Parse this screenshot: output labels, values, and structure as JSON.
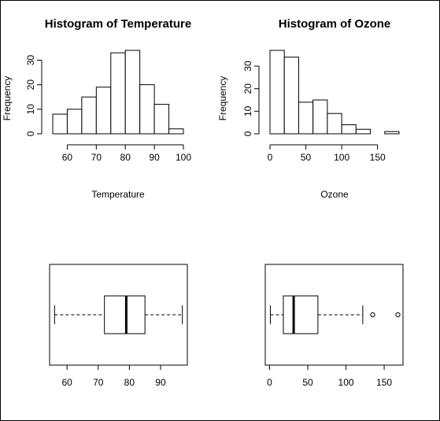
{
  "chart_data": [
    {
      "type": "bar",
      "subtype": "histogram",
      "title": "Histogram of Temperature",
      "xlabel": "Temperature",
      "ylabel": "Frequency",
      "bin_edges": [
        55,
        60,
        65,
        70,
        75,
        80,
        85,
        90,
        95,
        100
      ],
      "values": [
        8,
        10,
        15,
        19,
        33,
        34,
        20,
        12,
        2
      ],
      "xticks": [
        60,
        70,
        80,
        90,
        100
      ],
      "yticks": [
        0,
        10,
        20,
        30
      ],
      "xlim": [
        55,
        100
      ],
      "ylim": [
        0,
        34
      ]
    },
    {
      "type": "bar",
      "subtype": "histogram",
      "title": "Histogram of Ozone",
      "xlabel": "Ozone",
      "ylabel": "Frequency",
      "bin_edges": [
        0,
        20,
        40,
        60,
        80,
        100,
        120,
        140,
        160,
        180
      ],
      "values": [
        37,
        34,
        14,
        15,
        9,
        4,
        2,
        0,
        1
      ],
      "xticks": [
        0,
        50,
        100,
        150
      ],
      "yticks": [
        0,
        10,
        20,
        30
      ],
      "xlim": [
        0,
        180
      ],
      "ylim": [
        0,
        37
      ]
    },
    {
      "type": "boxplot",
      "orientation": "horizontal",
      "min": 56,
      "q1": 72,
      "median": 79,
      "q3": 85,
      "max": 97,
      "outliers": [],
      "xticks": [
        60,
        70,
        80,
        90
      ],
      "xlim": [
        54.4,
        98.6
      ]
    },
    {
      "type": "boxplot",
      "orientation": "horizontal",
      "min": 1,
      "q1": 18,
      "median": 31.5,
      "q3": 63.25,
      "max": 122,
      "outliers": [
        135,
        168
      ],
      "xticks": [
        0,
        50,
        100,
        150
      ],
      "xlim": [
        -5.68,
        174.68
      ]
    }
  ]
}
